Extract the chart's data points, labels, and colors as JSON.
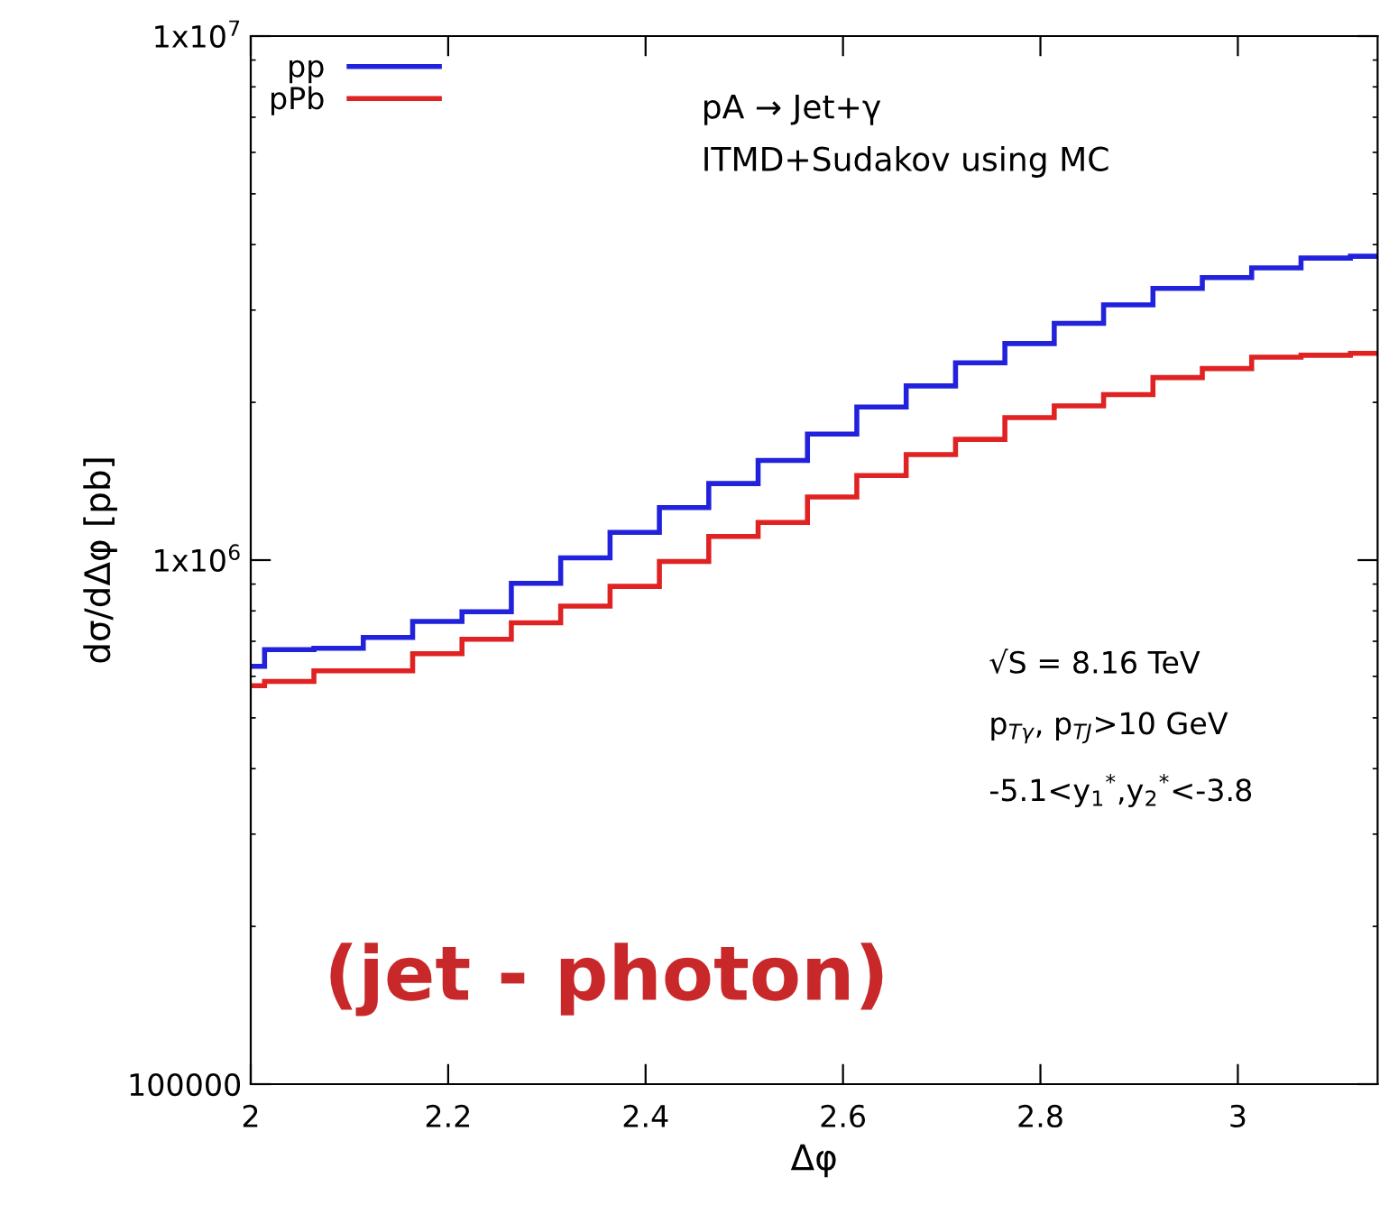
{
  "chart_data": {
    "type": "histogram",
    "xlabel": "Δφ",
    "ylabel": "dσ/dΔφ [pb]",
    "bins": [
      2,
      2.014,
      2.064,
      2.114,
      2.164,
      2.214,
      2.264,
      2.314,
      2.364,
      2.414,
      2.464,
      2.514,
      2.564,
      2.614,
      2.664,
      2.714,
      2.764,
      2.814,
      2.864,
      2.914,
      2.964,
      3.014,
      3.064,
      3.114,
      3.1416
    ],
    "series": [
      {
        "name": "pp",
        "color": "#2222dd",
        "values": [
          627000,
          675000,
          679000,
          712000,
          764000,
          797000,
          903000,
          1010000,
          1130000,
          1260000,
          1400000,
          1550000,
          1740000,
          1960000,
          2150000,
          2380000,
          2590000,
          2830000,
          3070000,
          3300000,
          3460000,
          3610000,
          3770000,
          3800000
        ]
      },
      {
        "name": "pPb",
        "color": "#e02222",
        "values": [
          576000,
          587000,
          615000,
          615000,
          663000,
          706000,
          759000,
          817000,
          891000,
          994000,
          1110000,
          1180000,
          1320000,
          1450000,
          1590000,
          1700000,
          1870000,
          1970000,
          2070000,
          2230000,
          2320000,
          2440000,
          2460000,
          2480000
        ]
      }
    ],
    "log": "y",
    "xlim": [
      2,
      3.1416
    ],
    "ylim": [
      100000,
      10000000
    ],
    "xticks": [
      2,
      2.2,
      2.4,
      2.6,
      2.8,
      3
    ],
    "yticks": [
      {
        "value": 100000,
        "label": "100000"
      },
      {
        "value": 1000000,
        "label": "1x10$^{6}$"
      },
      {
        "value": 10000000,
        "label": "1x10$^{7}$"
      }
    ],
    "grid": false,
    "legend": "top left",
    "annotations": [
      "pA → Jet+γ",
      "ITMD+Sudakov using MC",
      "√S = 8.16 TeV",
      "p$_{Tγ}$, p$_{TJ}$>10 GeV",
      "-5.1<y$_{1}$$^{*}$,y$_{2}$$^{*}$<-3.8",
      "(jet - photon)"
    ]
  }
}
